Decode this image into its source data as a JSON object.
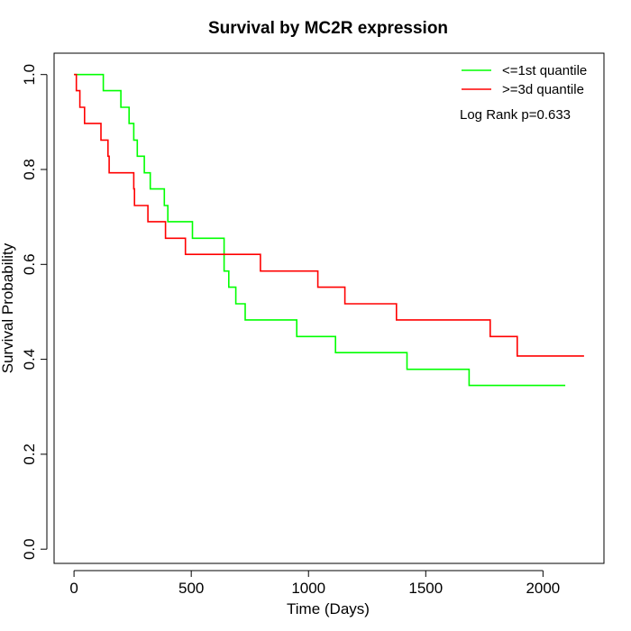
{
  "chart_data": {
    "type": "line",
    "title": "Survival by MC2R expression",
    "xlabel": "Time (Days)",
    "ylabel": "Survival Probability",
    "xlim": [
      -85,
      2260
    ],
    "ylim": [
      -0.03,
      1.045
    ],
    "x_ticks": [
      0,
      500,
      1000,
      1500,
      2000
    ],
    "x_tick_labels": [
      "0",
      "500",
      "1000",
      "1500",
      "2000"
    ],
    "y_ticks": [
      0.0,
      0.2,
      0.4,
      0.6,
      0.8,
      1.0
    ],
    "y_tick_labels": [
      "0.0",
      "0.2",
      "0.4",
      "0.6",
      "0.8",
      "1.0"
    ],
    "grid": false,
    "legend_position": "top-right",
    "annotation": "Log Rank p=0.633",
    "series": [
      {
        "name": "<=1st quantile",
        "color": "#00ff00",
        "step": true,
        "x": [
          0,
          125,
          200,
          235,
          255,
          270,
          300,
          325,
          385,
          400,
          505,
          640,
          660,
          690,
          730,
          950,
          1115,
          1420,
          1685,
          2095
        ],
        "y": [
          1.0,
          0.966,
          0.931,
          0.897,
          0.862,
          0.828,
          0.793,
          0.759,
          0.724,
          0.69,
          0.655,
          0.586,
          0.552,
          0.517,
          0.483,
          0.448,
          0.414,
          0.379,
          0.345,
          0.345
        ]
      },
      {
        "name": ">=3d quantile",
        "color": "#ff0000",
        "step": true,
        "x": [
          0,
          10,
          25,
          45,
          115,
          145,
          150,
          255,
          258,
          315,
          390,
          475,
          795,
          1040,
          1155,
          1375,
          1775,
          1890,
          2175
        ],
        "y": [
          1.0,
          0.966,
          0.931,
          0.897,
          0.862,
          0.828,
          0.793,
          0.759,
          0.724,
          0.69,
          0.655,
          0.621,
          0.586,
          0.552,
          0.517,
          0.483,
          0.448,
          0.407,
          0.407
        ]
      }
    ]
  }
}
